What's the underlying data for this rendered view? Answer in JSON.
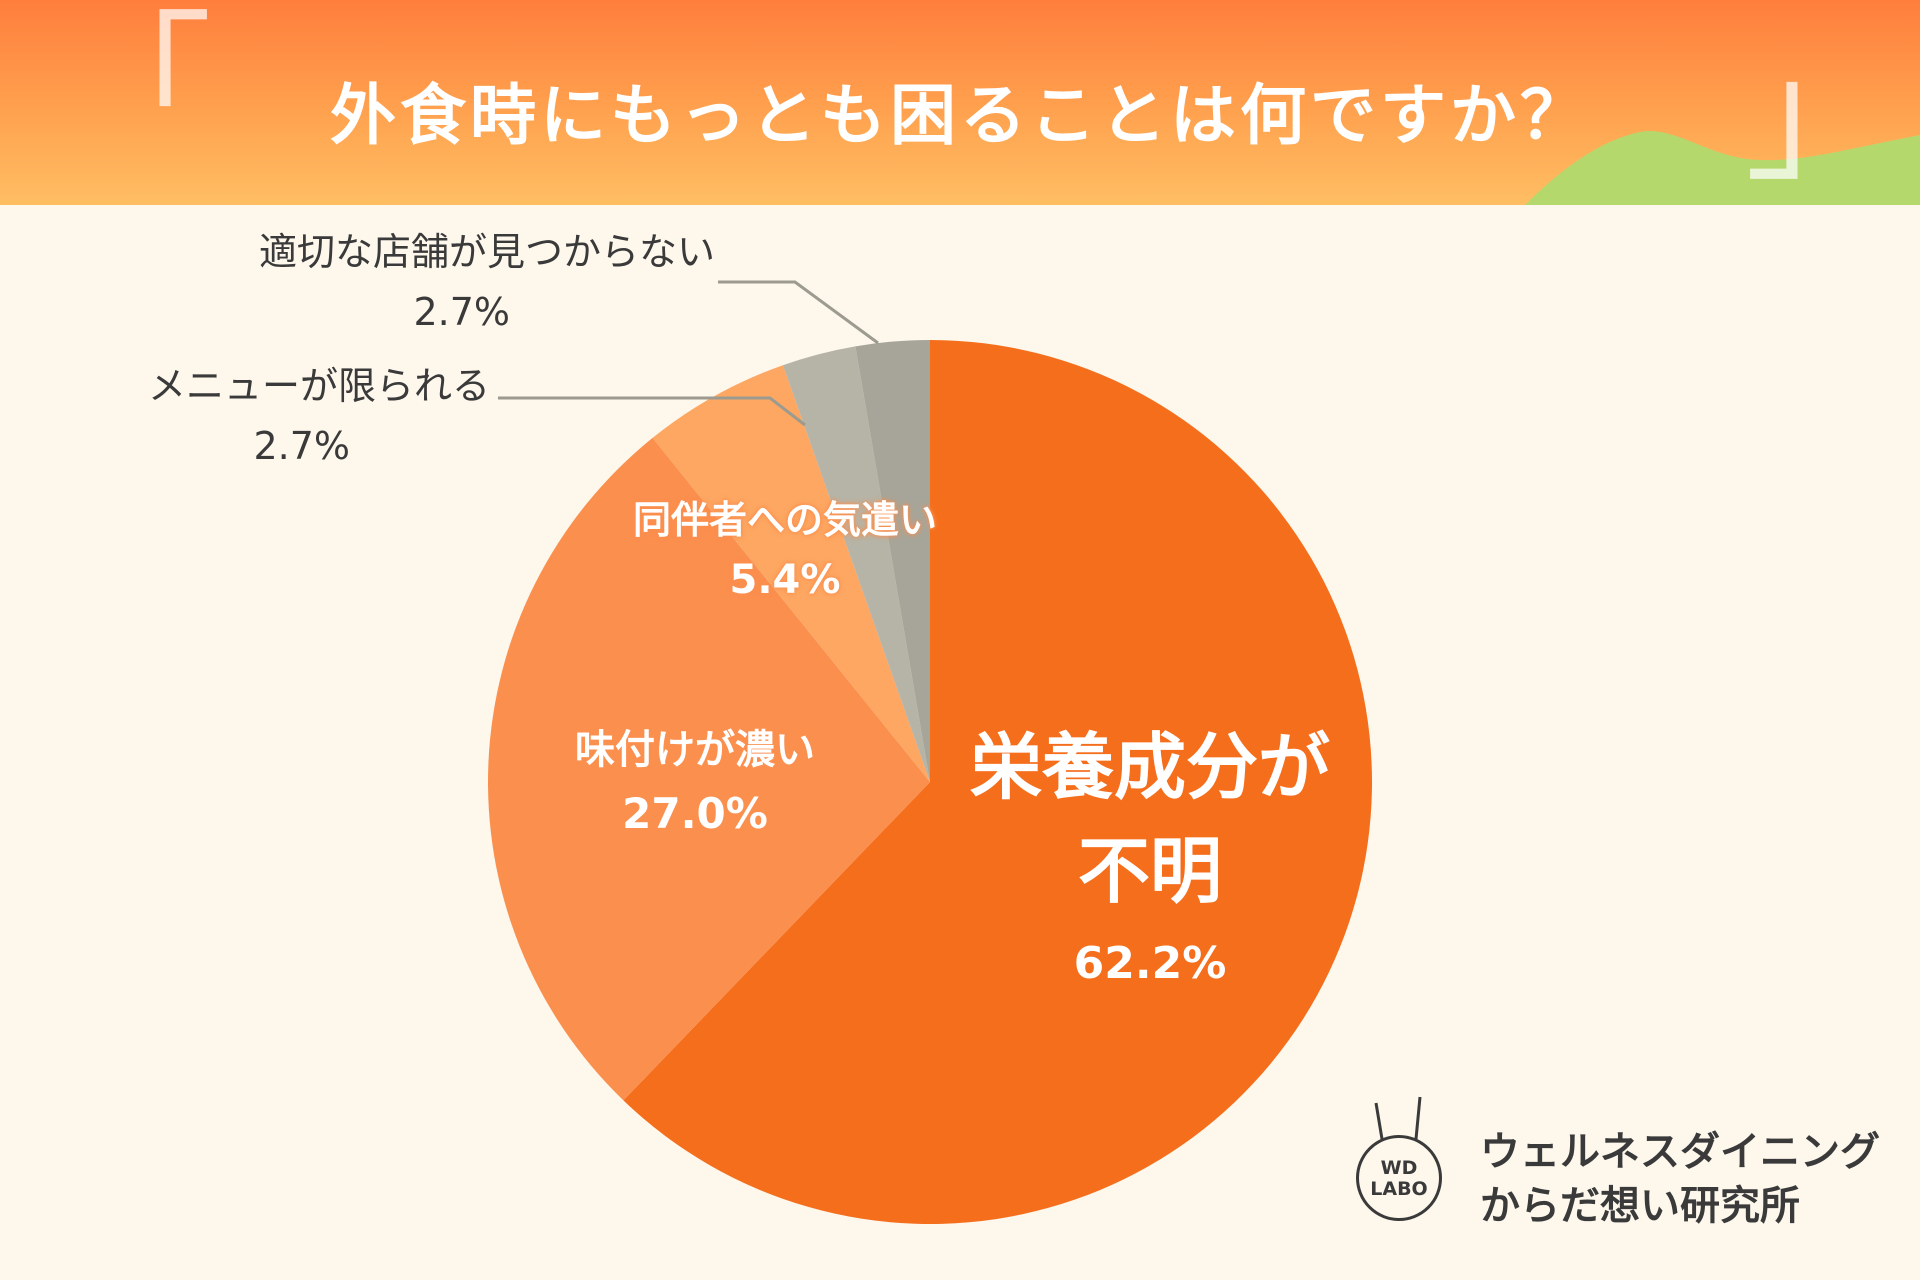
{
  "header": {
    "title": "外食時にもっとも困ることは何ですか？",
    "bracket_open": "「",
    "bracket_close": "」"
  },
  "chart_data": {
    "type": "pie",
    "title": "外食時にもっとも困ることは何ですか？",
    "start": "12 o'clock, clockwise",
    "slices": [
      {
        "label": "栄養成分が\n不明",
        "value": 62.2,
        "value_label": "62.2%",
        "color": "#f56e1c"
      },
      {
        "label": "味付けが濃い",
        "value": 27.0,
        "value_label": "27.0%",
        "color": "#fb8f4e"
      },
      {
        "label": "同伴者への気遣い",
        "value": 5.4,
        "value_label": "5.4%",
        "color": "#fda762"
      },
      {
        "label": "メニューが限られる",
        "value": 2.7,
        "value_label": "2.7%",
        "color": "#b6b4a6"
      },
      {
        "label": "適切な店舗が見つからない",
        "value": 2.7,
        "value_label": "2.7%",
        "color": "#a7a599"
      }
    ]
  },
  "logo": {
    "badge_line1": "WD",
    "badge_line2": "LABO",
    "line1": "ウェルネスダイニング",
    "line2": "からだ想い研究所"
  },
  "colors": {
    "background": "#fdf7ec",
    "header_top": "#ff7e3c",
    "header_bottom": "#ffbe63",
    "hill": "#b5d86d"
  }
}
